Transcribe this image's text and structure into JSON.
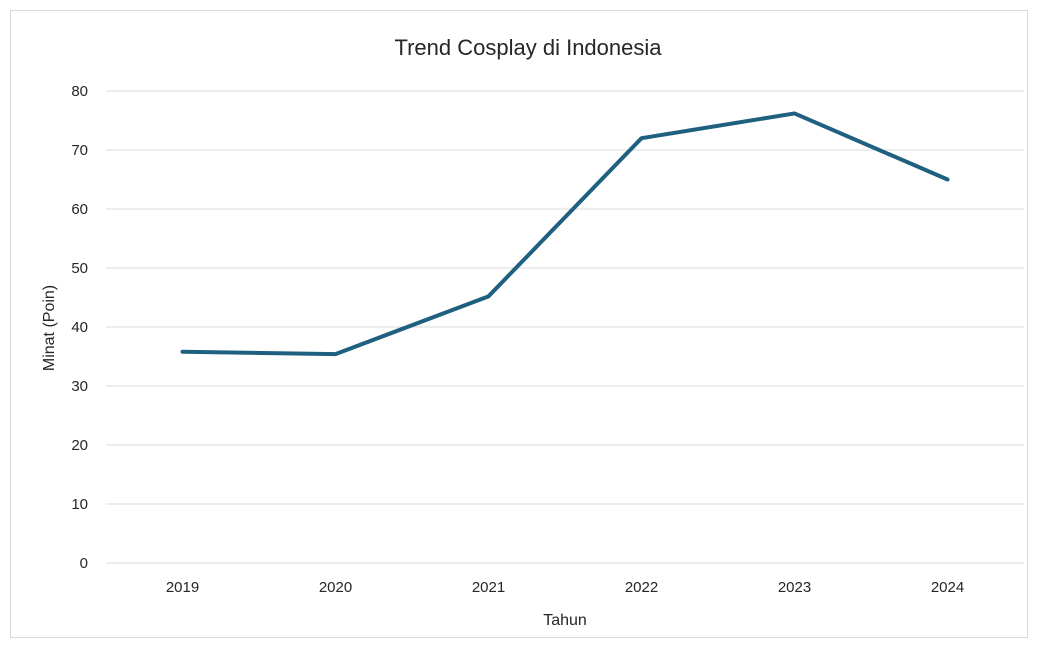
{
  "chart_data": {
    "type": "line",
    "title": "Trend Cosplay di Indonesia",
    "xlabel": "Tahun",
    "ylabel": "Minat (Poin)",
    "categories": [
      "2019",
      "2020",
      "2021",
      "2022",
      "2023",
      "2024"
    ],
    "series": [
      {
        "values": [
          35.8,
          35.4,
          45.2,
          72.0,
          76.2,
          65.0
        ],
        "color": "#1f6080"
      }
    ],
    "ylim": [
      0,
      80
    ],
    "yticks": [
      "0",
      "10",
      "20",
      "30",
      "40",
      "50",
      "60",
      "70",
      "80"
    ],
    "grid": true,
    "legend": "none"
  }
}
